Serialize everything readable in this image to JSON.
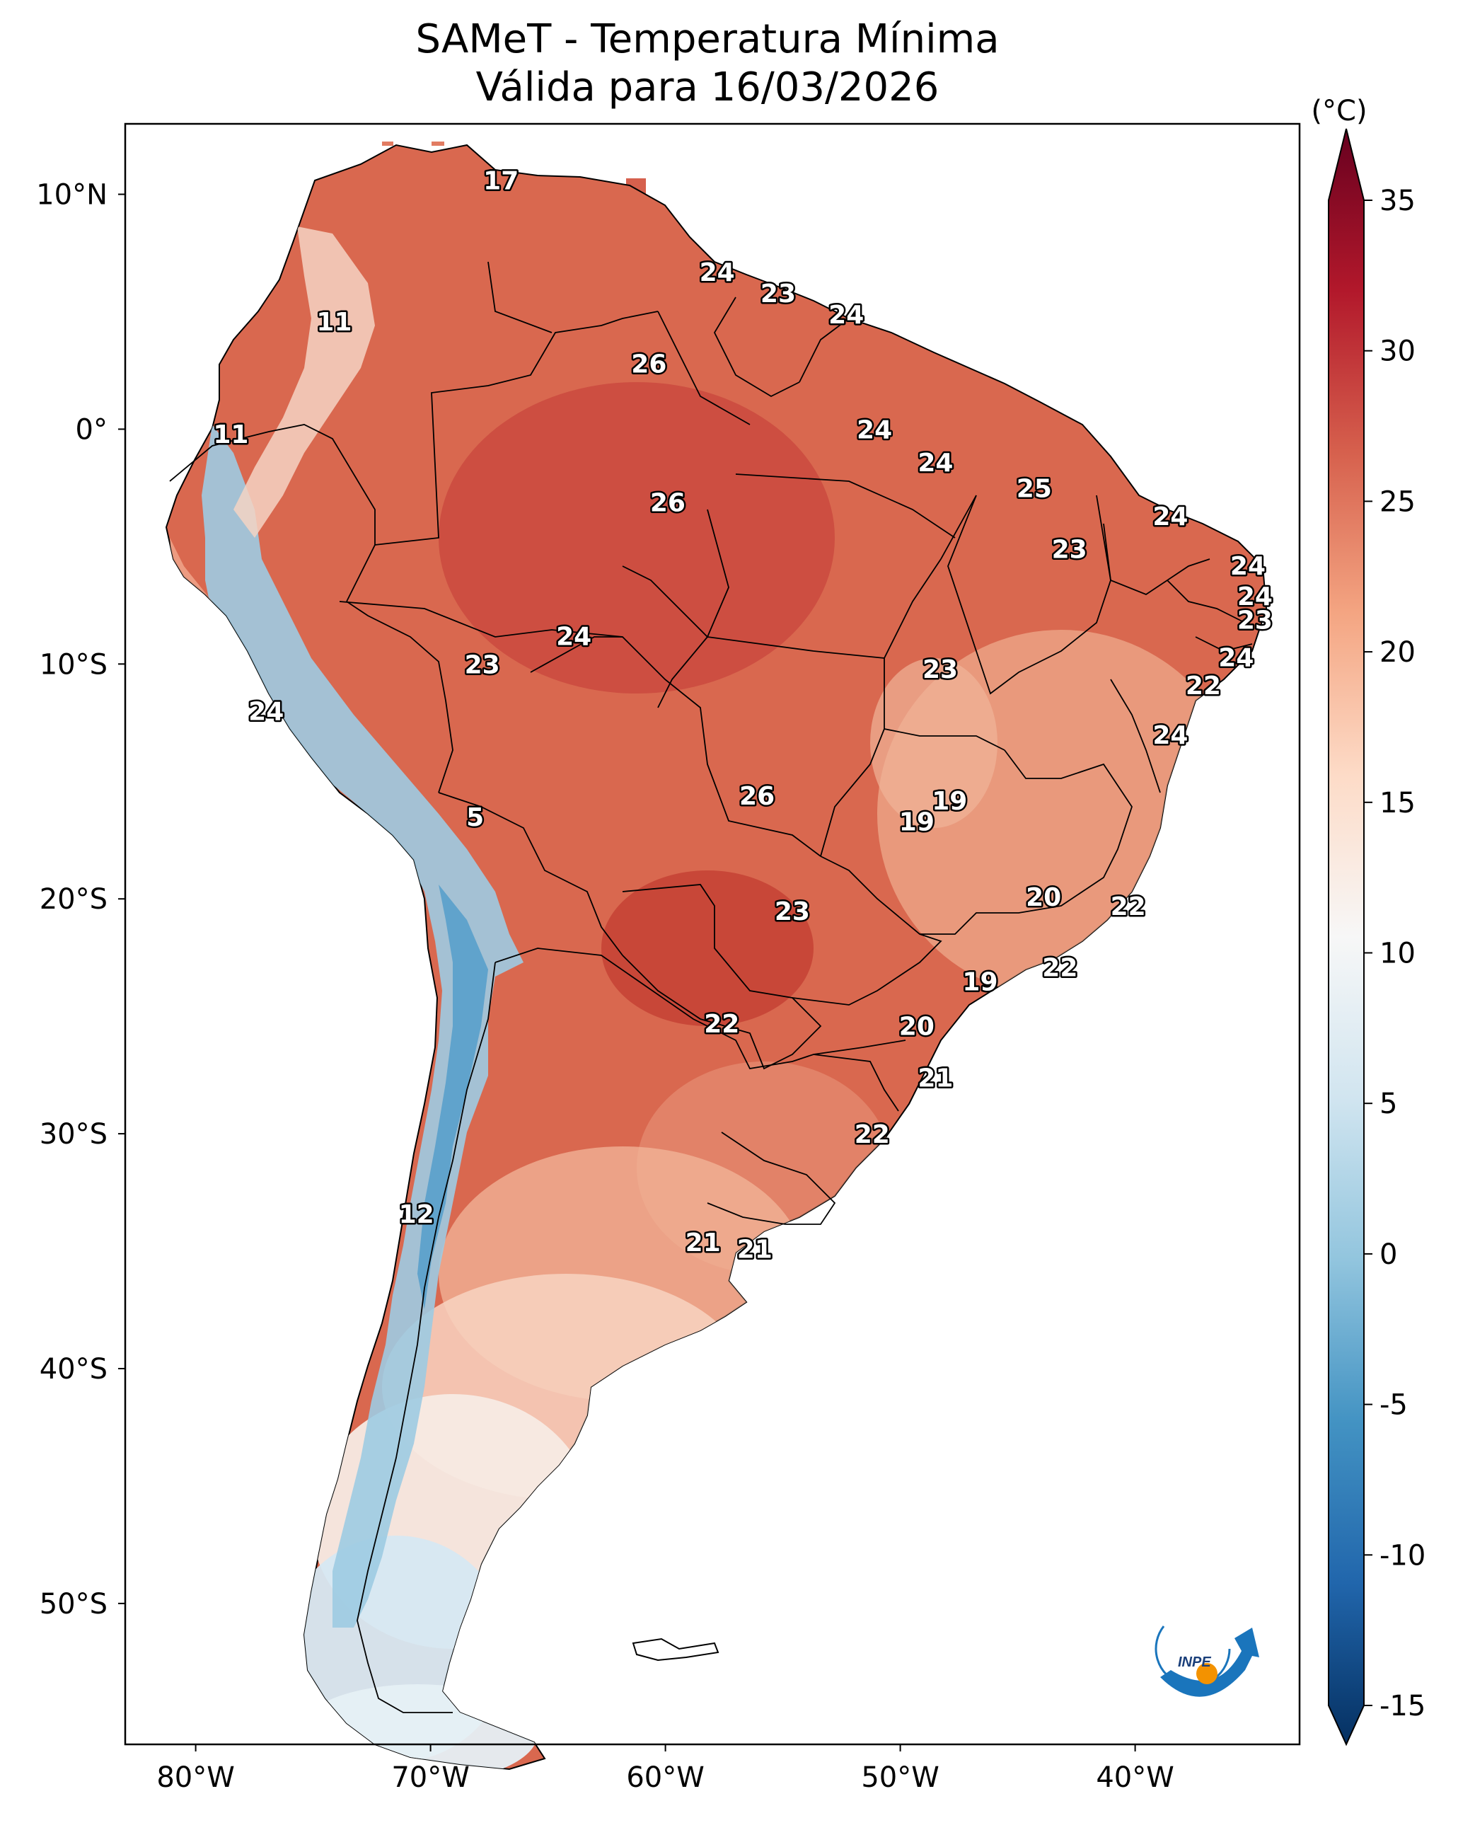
{
  "title": {
    "line1": "SAMeT - Temperatura Mínima",
    "line2": "Válida para 16/03/2026"
  },
  "map": {
    "lon_ticks": [
      {
        "value": -80,
        "label": "80°W"
      },
      {
        "value": -70,
        "label": "70°W"
      },
      {
        "value": -60,
        "label": "60°W"
      },
      {
        "value": -50,
        "label": "50°W"
      },
      {
        "value": -40,
        "label": "40°W"
      }
    ],
    "lat_ticks": [
      {
        "value": 10,
        "label": "10°N"
      },
      {
        "value": 0,
        "label": "0°"
      },
      {
        "value": -10,
        "label": "10°S"
      },
      {
        "value": -20,
        "label": "20°S"
      },
      {
        "value": -30,
        "label": "30°S"
      },
      {
        "value": -40,
        "label": "40°S"
      },
      {
        "value": -50,
        "label": "50°S"
      }
    ],
    "lon_range": [
      -83,
      -33
    ],
    "lat_range": [
      -56,
      13
    ]
  },
  "colorbar": {
    "unit": "(°C)",
    "range": [
      -15,
      35
    ],
    "ticks": [
      {
        "value": 35,
        "label": "35"
      },
      {
        "value": 30,
        "label": "30"
      },
      {
        "value": 25,
        "label": "25"
      },
      {
        "value": 20,
        "label": "20"
      },
      {
        "value": 15,
        "label": "15"
      },
      {
        "value": 10,
        "label": "10"
      },
      {
        "value": 5,
        "label": "5"
      },
      {
        "value": 0,
        "label": "0"
      },
      {
        "value": -5,
        "label": "-5"
      },
      {
        "value": -10,
        "label": "-10"
      },
      {
        "value": -15,
        "label": "-15"
      }
    ],
    "colors": [
      "#053061",
      "#2166ac",
      "#4393c3",
      "#92c5de",
      "#d1e5f0",
      "#f7f7f7",
      "#fddbc7",
      "#f4a582",
      "#d6604d",
      "#b2182b",
      "#67001f"
    ]
  },
  "city_values": [
    {
      "lon": -67.0,
      "lat": 10.6,
      "value": "17"
    },
    {
      "lon": -74.1,
      "lat": 4.6,
      "value": "11"
    },
    {
      "lon": -78.5,
      "lat": -0.2,
      "value": "11"
    },
    {
      "lon": -57.8,
      "lat": 6.7,
      "value": "24"
    },
    {
      "lon": -55.2,
      "lat": 5.8,
      "value": "23"
    },
    {
      "lon": -52.3,
      "lat": 4.9,
      "value": "24"
    },
    {
      "lon": -60.7,
      "lat": 2.8,
      "value": "26"
    },
    {
      "lon": -51.1,
      "lat": 0.0,
      "value": "24"
    },
    {
      "lon": -48.5,
      "lat": -1.4,
      "value": "24"
    },
    {
      "lon": -44.3,
      "lat": -2.5,
      "value": "25"
    },
    {
      "lon": -59.9,
      "lat": -3.1,
      "value": "26"
    },
    {
      "lon": -38.5,
      "lat": -3.7,
      "value": "24"
    },
    {
      "lon": -42.8,
      "lat": -5.1,
      "value": "23"
    },
    {
      "lon": -35.2,
      "lat": -5.8,
      "value": "24"
    },
    {
      "lon": -34.9,
      "lat": -7.1,
      "value": "24"
    },
    {
      "lon": -34.9,
      "lat": -8.1,
      "value": "23"
    },
    {
      "lon": -63.9,
      "lat": -8.8,
      "value": "24"
    },
    {
      "lon": -35.7,
      "lat": -9.7,
      "value": "24"
    },
    {
      "lon": -67.8,
      "lat": -10.0,
      "value": "23"
    },
    {
      "lon": -48.3,
      "lat": -10.2,
      "value": "23"
    },
    {
      "lon": -37.1,
      "lat": -10.9,
      "value": "22"
    },
    {
      "lon": -77.0,
      "lat": -12.0,
      "value": "24"
    },
    {
      "lon": -38.5,
      "lat": -13.0,
      "value": "24"
    },
    {
      "lon": -56.1,
      "lat": -15.6,
      "value": "26"
    },
    {
      "lon": -47.9,
      "lat": -15.8,
      "value": "19"
    },
    {
      "lon": -49.3,
      "lat": -16.7,
      "value": "19"
    },
    {
      "lon": -68.1,
      "lat": -16.5,
      "value": "5"
    },
    {
      "lon": -43.9,
      "lat": -19.9,
      "value": "20"
    },
    {
      "lon": -40.3,
      "lat": -20.3,
      "value": "22"
    },
    {
      "lon": -54.6,
      "lat": -20.5,
      "value": "23"
    },
    {
      "lon": -43.2,
      "lat": -22.9,
      "value": "22"
    },
    {
      "lon": -46.6,
      "lat": -23.5,
      "value": "19"
    },
    {
      "lon": -57.6,
      "lat": -25.3,
      "value": "22"
    },
    {
      "lon": -49.3,
      "lat": -25.4,
      "value": "20"
    },
    {
      "lon": -48.5,
      "lat": -27.6,
      "value": "21"
    },
    {
      "lon": -51.2,
      "lat": -30.0,
      "value": "22"
    },
    {
      "lon": -70.6,
      "lat": -33.4,
      "value": "12"
    },
    {
      "lon": -58.4,
      "lat": -34.6,
      "value": "21"
    },
    {
      "lon": -56.2,
      "lat": -34.9,
      "value": "21"
    }
  ],
  "logo": {
    "text": "INPE",
    "orange": "#f39200",
    "blue": "#1a75bc"
  }
}
